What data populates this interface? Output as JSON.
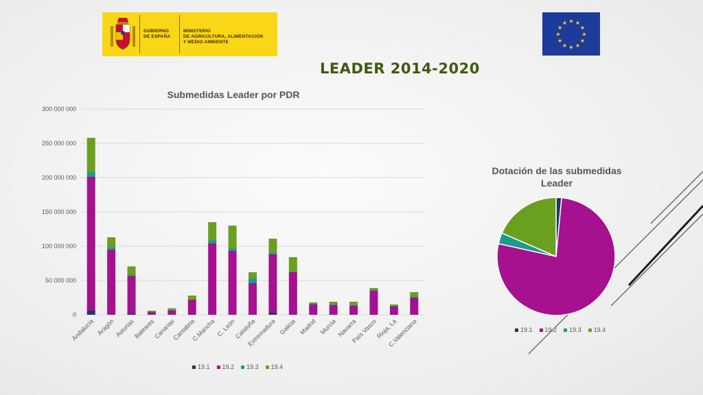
{
  "slide_title": "LEADER 2014-2020",
  "logo": {
    "gobierno_line1": "GOBIERNO",
    "gobierno_line2": "DE ESPAÑA",
    "ministerio_line1": "MINISTERIO",
    "ministerio_line2": "DE AGRICULTURA, ALIMENTACIÓN",
    "ministerio_line3": "Y MEDIO AMBIENTE"
  },
  "colors": {
    "s19_1": "#1f3864",
    "s19_2": "#a5118f",
    "s19_3": "#1c9a8c",
    "s19_4": "#6a9f1f",
    "logo_bg": "#f9d616",
    "eu_blue": "#1d3b9a",
    "eu_star": "#f9d616",
    "title": "#3e5a10"
  },
  "icons": {
    "coat_of_arms": "spain-coat-of-arms-icon",
    "eu_flag": "eu-flag-icon"
  },
  "chart_data": [
    {
      "type": "bar",
      "stacked": true,
      "title": "Submedidas Leader por PDR",
      "categories": [
        "Andalucía",
        "Aragón",
        "Asturias",
        "Baleares",
        "Canarias",
        "Cantabria",
        "C.Mancha",
        "C. León",
        "Cataluña",
        "Extremadura",
        "Galicia",
        "Madrid",
        "Murcia",
        "Navarra",
        "País Vasco",
        "Rioja, La",
        "C.Valenciana"
      ],
      "series": [
        {
          "name": "19.1",
          "values": [
            6000000,
            0,
            1500000,
            0,
            0,
            0,
            0,
            0,
            0,
            3000000,
            0,
            0,
            0,
            0,
            0,
            0,
            0
          ]
        },
        {
          "name": "19.2",
          "values": [
            195000000,
            95000000,
            55000000,
            4000000,
            6000000,
            22000000,
            104000000,
            93000000,
            46000000,
            85000000,
            62000000,
            15000000,
            14000000,
            13000000,
            35000000,
            12000000,
            25000000
          ]
        },
        {
          "name": "19.3",
          "values": [
            7000000,
            3000000,
            1000000,
            0,
            1000000,
            0,
            4000000,
            4000000,
            7000000,
            2000000,
            1000000,
            1000000,
            1000000,
            1000000,
            1000000,
            1000000,
            1000000
          ]
        },
        {
          "name": "19.4",
          "values": [
            50000000,
            15000000,
            13000000,
            2000000,
            2500000,
            6000000,
            27000000,
            33000000,
            9000000,
            21000000,
            21000000,
            2000000,
            4000000,
            5000000,
            3000000,
            2000000,
            7000000
          ]
        }
      ],
      "ylim": [
        0,
        300000000
      ],
      "yticks": [
        0,
        50000000,
        100000000,
        150000000,
        200000000,
        250000000,
        300000000
      ],
      "ytick_labels": [
        "0",
        "50 000 000",
        "100 000 000",
        "150 000 000",
        "200 000 000",
        "250 000 000",
        "300 000 000"
      ],
      "grid": true,
      "legend": "bottom"
    },
    {
      "type": "pie",
      "title": "Dotación de las submedidas Leader",
      "labels": [
        "19.1",
        "19.2",
        "19.3",
        "19.4"
      ],
      "values": [
        1.5,
        77,
        3,
        18.5
      ],
      "legend": "bottom"
    }
  ]
}
